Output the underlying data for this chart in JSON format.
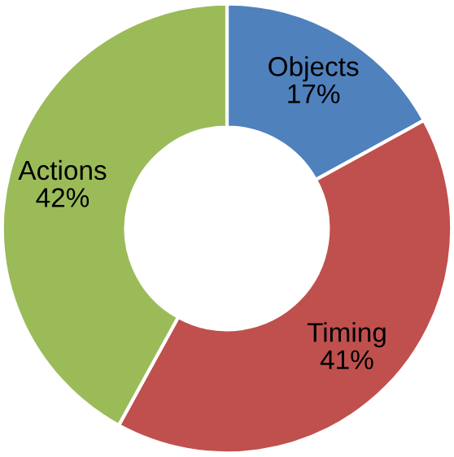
{
  "chart_data": {
    "type": "donut",
    "categories": [
      "Objects",
      "Timing",
      "Actions"
    ],
    "values": [
      17,
      41,
      42
    ],
    "colors": [
      "#4f81bd",
      "#c0504d",
      "#9bbb59"
    ],
    "value_labels": [
      "17%",
      "41%",
      "42%"
    ]
  }
}
